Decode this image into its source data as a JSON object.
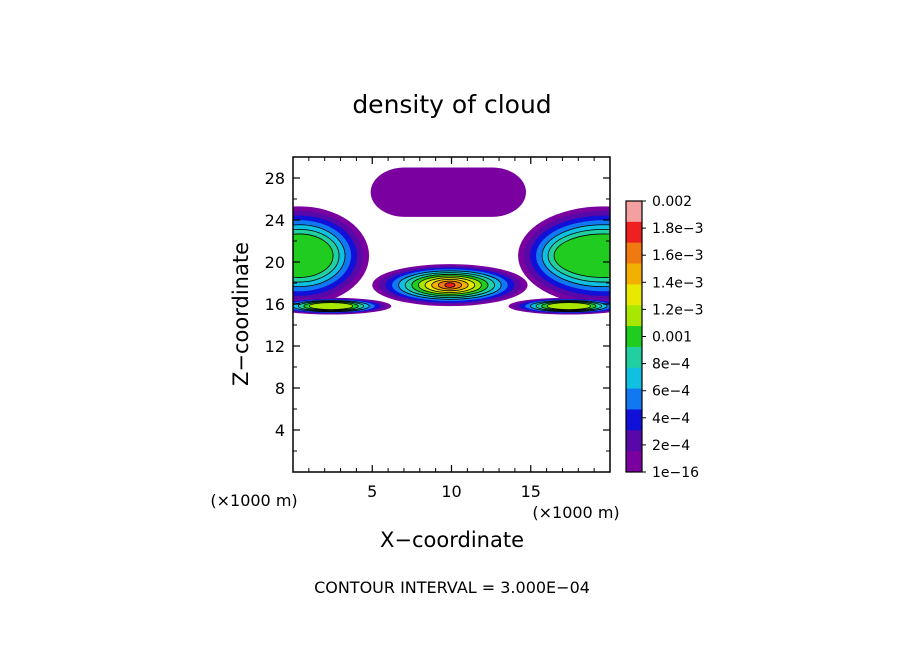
{
  "chart_data": {
    "type": "heatmap",
    "title": "density of cloud",
    "xlabel": "X−coordinate",
    "ylabel": "Z−coordinate",
    "x_unit_label_left": "(×1000 m)",
    "x_unit_label_right": "(×1000 m)",
    "xlim": [
      0,
      20
    ],
    "ylim": [
      0,
      30
    ],
    "xticks": [
      5,
      10,
      15
    ],
    "yticks": [
      4,
      8,
      12,
      16,
      20,
      24,
      28
    ],
    "footer": "CONTOUR INTERVAL = 3.000E−04",
    "colorbar": {
      "labels": [
        "0.002",
        "1.8e−3",
        "1.6e−3",
        "1.4e−3",
        "1.2e−3",
        "0.001",
        "8e−4",
        "6e−4",
        "4e−4",
        "2e−4",
        "1e−16"
      ],
      "colors": [
        "#f4a0a0",
        "#ee2020",
        "#f07a10",
        "#f3b000",
        "#e8e800",
        "#a8e800",
        "#20cc20",
        "#20d0a0",
        "#10c0e0",
        "#1078f0",
        "#1010d8",
        "#5808a8",
        "#7a00a0"
      ]
    },
    "regions": [
      {
        "name": "top-center-cloud",
        "level": 0,
        "x": [
          4.9,
          14.7
        ],
        "z": [
          24.3,
          29.0
        ]
      },
      {
        "name": "left-upper-cloud",
        "peak_level": 6,
        "x": [
          0,
          4.8
        ],
        "z": [
          18.8,
          25.3
        ]
      },
      {
        "name": "right-upper-cloud",
        "peak_level": 6,
        "x": [
          14.2,
          20
        ],
        "z": [
          18.8,
          25.3
        ]
      },
      {
        "name": "center-core",
        "peak_level": 11,
        "x": [
          5.0,
          14.8
        ],
        "z": [
          16.3,
          19.8
        ]
      },
      {
        "name": "left-lower-layer",
        "peak_level": 7,
        "x": [
          0,
          6.2
        ],
        "z": [
          15.2,
          16.6
        ]
      },
      {
        "name": "right-lower-layer",
        "peak_level": 7,
        "x": [
          13.6,
          20
        ],
        "z": [
          15.2,
          16.6
        ]
      }
    ]
  }
}
